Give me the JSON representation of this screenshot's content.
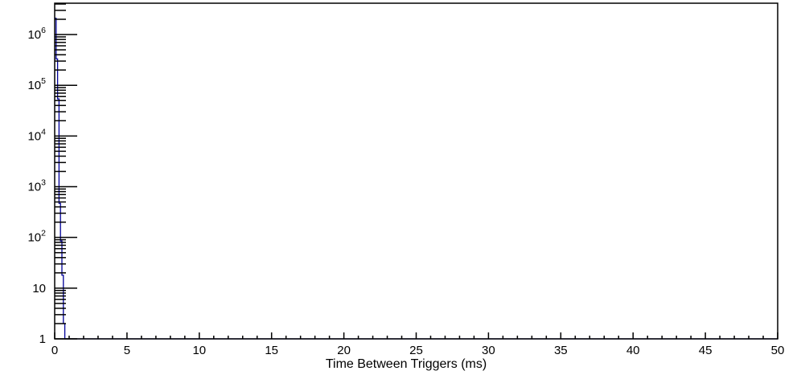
{
  "chart_data": {
    "type": "histogram",
    "title": "",
    "xlabel": "Time Between Triggers (ms)",
    "ylabel": "",
    "x_range": [
      0,
      50
    ],
    "x_major_tick_step": 5,
    "x_minor_tick_step": 1,
    "x_tick_labels": [
      "0",
      "5",
      "10",
      "15",
      "20",
      "25",
      "30",
      "35",
      "40",
      "45",
      "50"
    ],
    "y_scale": "log",
    "y_range": [
      1,
      4150000
    ],
    "y_tick_labels": [
      "1",
      "10",
      "10^2",
      "10^3",
      "10^4",
      "10^5",
      "10^6"
    ],
    "grid": "off",
    "legend": "none",
    "bin_edges_ms": [
      0,
      0.1,
      0.2,
      0.3,
      0.4,
      0.5,
      0.6,
      0.7
    ],
    "counts": [
      2100000,
      330000,
      54000,
      470,
      85,
      18,
      2
    ],
    "baseline_value": 1,
    "colors": {
      "histogram_line": "#000099",
      "axis": "#000000",
      "background": "#ffffff",
      "text": "#000000"
    }
  }
}
